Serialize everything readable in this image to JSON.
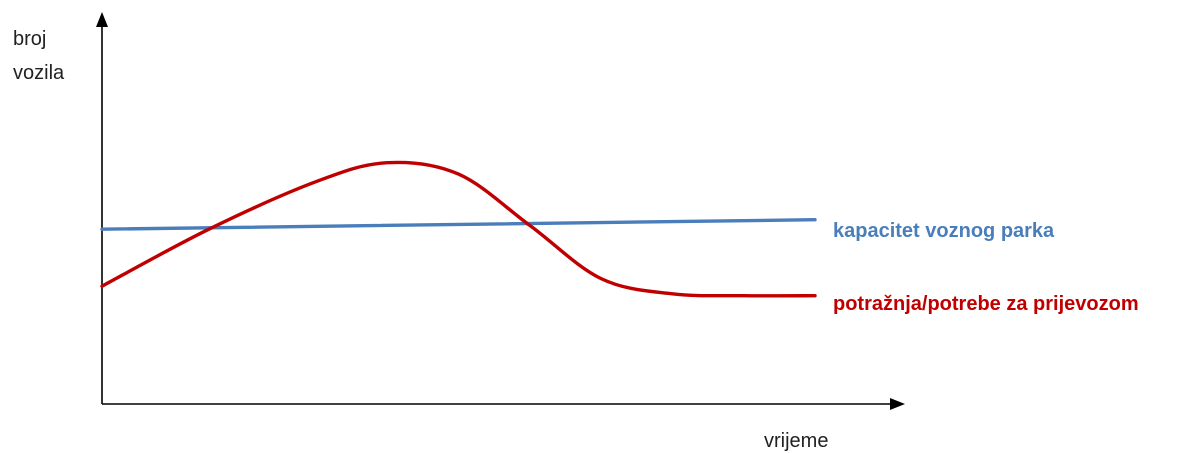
{
  "chart_data": {
    "type": "line",
    "title": "",
    "ylabel_lines": [
      "broj",
      "vozila"
    ],
    "xlabel": "vrijeme",
    "xlim": [
      0,
      10
    ],
    "ylim": [
      0,
      10
    ],
    "grid": false,
    "legend": "inline-right",
    "series": [
      {
        "name": "kapacitet voznog parka",
        "color": "#4a7ebb",
        "x": [
          0,
          10
        ],
        "y": [
          4.6,
          4.85
        ]
      },
      {
        "name": "potražnja/potrebe za prijevozom",
        "color": "#c00000",
        "x": [
          0,
          1.5,
          3,
          4,
          5,
          6,
          7,
          8,
          9,
          10
        ],
        "y": [
          3.1,
          4.6,
          5.85,
          6.35,
          6.05,
          4.7,
          3.3,
          2.9,
          2.85,
          2.85
        ]
      }
    ]
  }
}
